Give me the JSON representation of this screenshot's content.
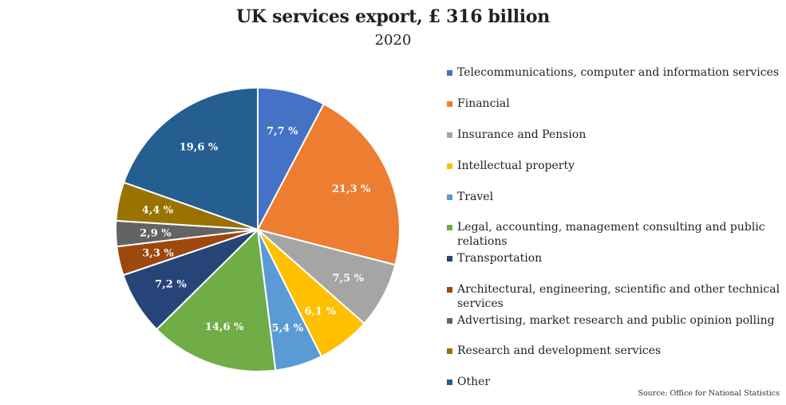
{
  "chart_data": {
    "type": "pie",
    "title": "UK services export, £ 316 billion",
    "subtitle": "2020",
    "slices": [
      {
        "label": "Telecommunications, computer and information services",
        "value": 7.7,
        "display": "7,7 %",
        "color": "#4472C4"
      },
      {
        "label": "Financial",
        "value": 21.3,
        "display": "21,3 %",
        "color": "#ED7D31"
      },
      {
        "label": "Insurance and Pension",
        "value": 7.5,
        "display": "7,5 %",
        "color": "#A5A5A5"
      },
      {
        "label": "Intellectual property",
        "value": 6.1,
        "display": "6,1 %",
        "color": "#FFC000"
      },
      {
        "label": "Travel",
        "value": 5.4,
        "display": "5,4 %",
        "color": "#5B9BD5"
      },
      {
        "label": "Legal, accounting, management consulting and public relations",
        "value": 14.6,
        "display": "14,6 %",
        "color": "#70AD47"
      },
      {
        "label": "Transportation",
        "value": 7.2,
        "display": "7,2 %",
        "color": "#264478"
      },
      {
        "label": "Architectural, engineering, scientific and other technical services",
        "value": 3.3,
        "display": "3,3 %",
        "color": "#9E480E"
      },
      {
        "label": "Advertising, market research and public opinion polling",
        "value": 2.9,
        "display": "2,9 %",
        "color": "#636363"
      },
      {
        "label": "Research and development services",
        "value": 4.4,
        "display": "4,4 %",
        "color": "#997300"
      },
      {
        "label": "Other",
        "value": 19.6,
        "display": "19,6 %",
        "color": "#255E91"
      }
    ],
    "legend_position": "right",
    "source": "Source: Office for National Statistics"
  }
}
